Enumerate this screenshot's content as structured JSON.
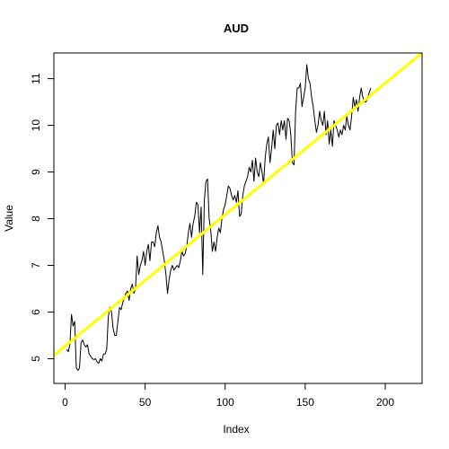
{
  "chart_data": {
    "type": "line",
    "title": "AUD",
    "xlabel": "Index",
    "ylabel": "Value",
    "xlim": [
      -7,
      223
    ],
    "ylim": [
      4.47,
      11.55
    ],
    "xticks": [
      0,
      50,
      100,
      150,
      200
    ],
    "yticks": [
      5,
      6,
      7,
      8,
      9,
      10,
      11
    ],
    "grid": false,
    "series": [
      {
        "type": "line",
        "color": "#000000",
        "points": [
          [
            1,
            5.2
          ],
          [
            2,
            5.15
          ],
          [
            3,
            5.3
          ],
          [
            4,
            5.95
          ],
          [
            5,
            5.7
          ],
          [
            6,
            5.8
          ],
          [
            7,
            4.8
          ],
          [
            8,
            4.75
          ],
          [
            9,
            4.8
          ],
          [
            10,
            5.35
          ],
          [
            11,
            5.4
          ],
          [
            12,
            5.3
          ],
          [
            13,
            5.25
          ],
          [
            14,
            5.3
          ],
          [
            15,
            5.1
          ],
          [
            16,
            5.05
          ],
          [
            17,
            5.0
          ],
          [
            18,
            4.98
          ],
          [
            19,
            5.0
          ],
          [
            20,
            4.93
          ],
          [
            21,
            4.9
          ],
          [
            22,
            5.0
          ],
          [
            23,
            4.95
          ],
          [
            24,
            5.1
          ],
          [
            25,
            5.1
          ],
          [
            26,
            5.2
          ],
          [
            27,
            5.9
          ],
          [
            28,
            6.1
          ],
          [
            29,
            6.0
          ],
          [
            30,
            5.65
          ],
          [
            31,
            5.5
          ],
          [
            32,
            5.5
          ],
          [
            33,
            5.8
          ],
          [
            34,
            6.1
          ],
          [
            35,
            6.05
          ],
          [
            36,
            6.2
          ],
          [
            37,
            6.3
          ],
          [
            38,
            6.4
          ],
          [
            39,
            6.45
          ],
          [
            40,
            6.25
          ],
          [
            41,
            6.5
          ],
          [
            42,
            6.6
          ],
          [
            43,
            6.4
          ],
          [
            44,
            6.5
          ],
          [
            45,
            7.2
          ],
          [
            46,
            6.8
          ],
          [
            47,
            7.0
          ],
          [
            48,
            7.1
          ],
          [
            49,
            7.3
          ],
          [
            50,
            7.0
          ],
          [
            51,
            7.3
          ],
          [
            52,
            7.45
          ],
          [
            53,
            7.1
          ],
          [
            54,
            7.5
          ],
          [
            55,
            7.5
          ],
          [
            56,
            7.4
          ],
          [
            57,
            7.7
          ],
          [
            58,
            7.85
          ],
          [
            59,
            7.6
          ],
          [
            60,
            7.5
          ],
          [
            61,
            7.3
          ],
          [
            62,
            7.1
          ],
          [
            63,
            6.8
          ],
          [
            64,
            6.4
          ],
          [
            65,
            6.7
          ],
          [
            66,
            6.9
          ],
          [
            67,
            7.0
          ],
          [
            68,
            6.9
          ],
          [
            69,
            6.95
          ],
          [
            70,
            7.0
          ],
          [
            71,
            6.95
          ],
          [
            72,
            7.1
          ],
          [
            73,
            7.3
          ],
          [
            74,
            7.2
          ],
          [
            75,
            7.25
          ],
          [
            76,
            7.4
          ],
          [
            77,
            7.7
          ],
          [
            78,
            7.9
          ],
          [
            79,
            7.6
          ],
          [
            80,
            7.9
          ],
          [
            81,
            8.05
          ],
          [
            82,
            8.35
          ],
          [
            83,
            8.3
          ],
          [
            84,
            7.7
          ],
          [
            85,
            8.25
          ],
          [
            86,
            6.8
          ],
          [
            87,
            8.4
          ],
          [
            88,
            8.8
          ],
          [
            89,
            8.85
          ],
          [
            90,
            8.0
          ],
          [
            91,
            7.75
          ],
          [
            92,
            7.3
          ],
          [
            93,
            7.5
          ],
          [
            94,
            7.3
          ],
          [
            95,
            7.6
          ],
          [
            96,
            7.8
          ],
          [
            97,
            7.7
          ],
          [
            98,
            8.0
          ],
          [
            99,
            8.2
          ],
          [
            100,
            8.3
          ],
          [
            101,
            8.5
          ],
          [
            102,
            8.7
          ],
          [
            103,
            8.65
          ],
          [
            104,
            8.5
          ],
          [
            105,
            8.4
          ],
          [
            106,
            8.5
          ],
          [
            107,
            8.35
          ],
          [
            108,
            8.6
          ],
          [
            109,
            8.05
          ],
          [
            110,
            8.1
          ],
          [
            111,
            8.5
          ],
          [
            112,
            8.7
          ],
          [
            113,
            8.8
          ],
          [
            114,
            8.9
          ],
          [
            115,
            9.1
          ],
          [
            116,
            9.0
          ],
          [
            117,
            9.25
          ],
          [
            118,
            8.8
          ],
          [
            119,
            9.3
          ],
          [
            120,
            9.0
          ],
          [
            121,
            8.9
          ],
          [
            122,
            9.2
          ],
          [
            123,
            9.0
          ],
          [
            124,
            8.75
          ],
          [
            125,
            9.3
          ],
          [
            126,
            9.6
          ],
          [
            127,
            9.75
          ],
          [
            128,
            9.2
          ],
          [
            129,
            9.5
          ],
          [
            130,
            9.9
          ],
          [
            131,
            9.5
          ],
          [
            132,
            10.0
          ],
          [
            133,
            10.05
          ],
          [
            134,
            9.8
          ],
          [
            135,
            10.1
          ],
          [
            136,
            9.9
          ],
          [
            137,
            10.1
          ],
          [
            138,
            9.7
          ],
          [
            139,
            10.15
          ],
          [
            140,
            10.1
          ],
          [
            141,
            9.8
          ],
          [
            142,
            9.2
          ],
          [
            143,
            9.15
          ],
          [
            144,
            10.3
          ],
          [
            145,
            10.8
          ],
          [
            146,
            10.8
          ],
          [
            147,
            10.9
          ],
          [
            148,
            10.4
          ],
          [
            149,
            10.6
          ],
          [
            150,
            10.8
          ],
          [
            151,
            11.3
          ],
          [
            152,
            11.0
          ],
          [
            153,
            10.9
          ],
          [
            154,
            10.6
          ],
          [
            155,
            10.4
          ],
          [
            156,
            10.1
          ],
          [
            157,
            9.85
          ],
          [
            158,
            10.0
          ],
          [
            159,
            10.3
          ],
          [
            160,
            10.1
          ],
          [
            161,
            10.0
          ],
          [
            162,
            10.3
          ],
          [
            163,
            9.8
          ],
          [
            164,
            10.1
          ],
          [
            165,
            9.6
          ],
          [
            166,
            9.9
          ],
          [
            167,
            9.55
          ],
          [
            168,
            10.1
          ],
          [
            169,
            10.0
          ],
          [
            170,
            9.9
          ],
          [
            171,
            9.75
          ],
          [
            172,
            9.9
          ],
          [
            173,
            9.8
          ],
          [
            174,
            10.0
          ],
          [
            175,
            9.9
          ],
          [
            176,
            10.2
          ],
          [
            177,
            10.0
          ],
          [
            178,
            9.9
          ],
          [
            179,
            10.2
          ],
          [
            180,
            10.6
          ],
          [
            181,
            10.4
          ],
          [
            182,
            10.55
          ],
          [
            183,
            10.3
          ],
          [
            184,
            10.6
          ],
          [
            185,
            10.8
          ],
          [
            186,
            10.6
          ],
          [
            187,
            10.5
          ],
          [
            188,
            10.5
          ],
          [
            189,
            10.6
          ],
          [
            190,
            10.7
          ],
          [
            191,
            10.8
          ]
        ]
      },
      {
        "type": "abline",
        "color": "#ffff00",
        "points": [
          [
            -7,
            5.07
          ],
          [
            223,
            11.55
          ]
        ]
      }
    ]
  }
}
